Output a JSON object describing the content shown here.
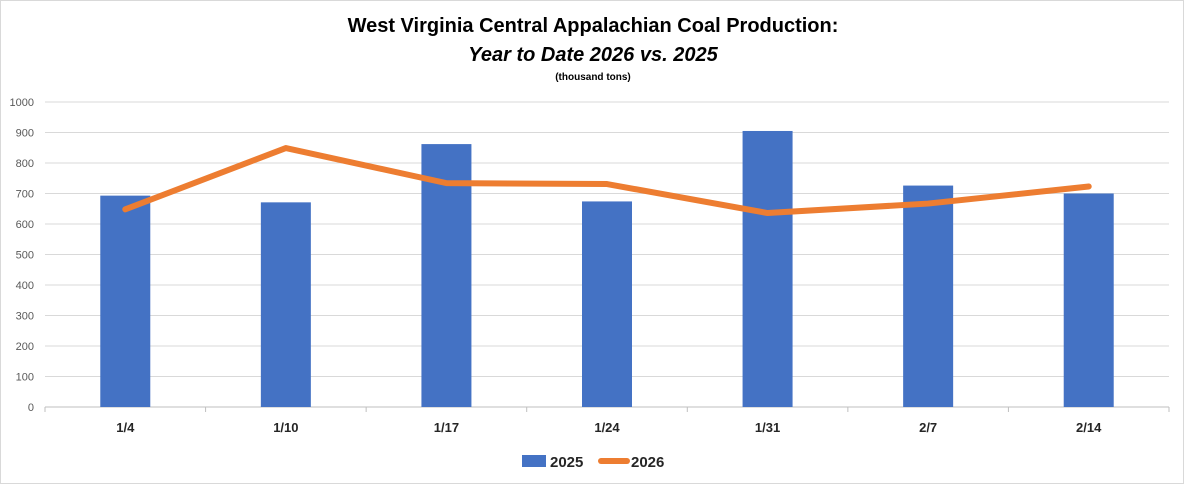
{
  "chart_data": {
    "type": "bar+line",
    "title": "West Virginia Central Appalachian Coal Production:",
    "subtitle": "Year to Date 2026 vs. 2025",
    "units": "(thousand tons)",
    "categories": [
      "1/4",
      "1/10",
      "1/17",
      "1/24",
      "1/31",
      "2/7",
      "2/14"
    ],
    "ylim": [
      0,
      1000
    ],
    "yticks": [
      0,
      100,
      200,
      300,
      400,
      500,
      600,
      700,
      800,
      900,
      1000
    ],
    "grid": true,
    "legend": "bottom",
    "series": [
      {
        "name": "2025",
        "type": "bar",
        "color": "#4472C4",
        "values": [
          693,
          671,
          862,
          674,
          905,
          726,
          700
        ]
      },
      {
        "name": "2026",
        "type": "line",
        "color": "#ED7D31",
        "values": [
          648,
          849,
          734,
          731,
          636,
          667,
          723
        ]
      }
    ]
  }
}
